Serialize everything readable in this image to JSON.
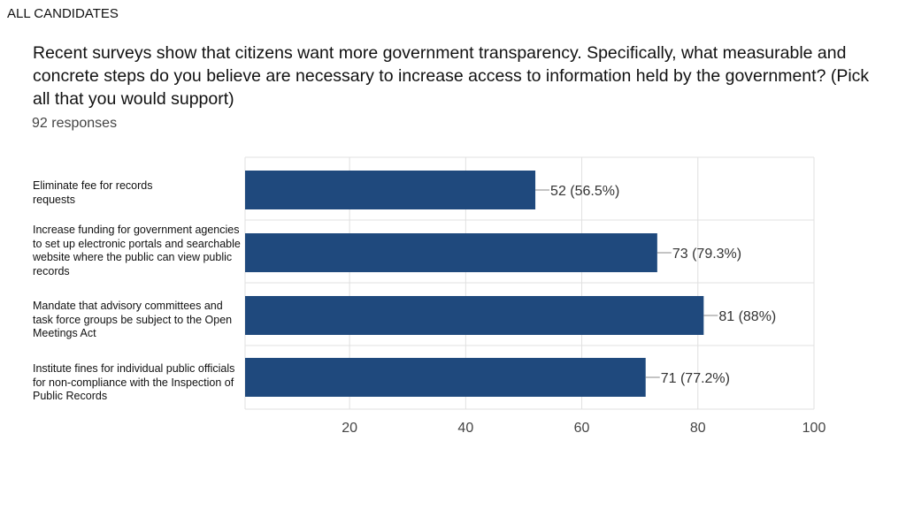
{
  "header": {
    "corner_label": "ALL CANDIDATES",
    "question": "Recent surveys show that citizens want more government transparency. Specifically, what measurable and concrete steps do you believe are necessary to increase access to information held by the government? (Pick all that you would support)",
    "responses": "92 responses"
  },
  "colors": {
    "bar": "#1f497d",
    "grid": "#e0e0e0",
    "leader": "#888888",
    "tick_text": "#444444"
  },
  "chart_data": {
    "type": "bar",
    "orientation": "horizontal",
    "categories": [
      "Eliminate fee for records requests",
      "Increase funding for government agencies to set up electronic portals and searchable website where the public can view public records",
      "Mandate that advisory committees and task force groups be subject to the Open Meetings Act",
      "Institute fines for individual public officials for non-compliance with the Inspection of Public Records"
    ],
    "values": [
      52,
      73,
      81,
      71
    ],
    "data_labels": [
      "52 (56.5%)",
      "73 (79.3%)",
      "81 (88%)",
      "71 (77.2%)"
    ],
    "x_ticks": [
      20,
      40,
      60,
      80,
      100
    ],
    "tick_labels": [
      "20",
      "40",
      "60",
      "80",
      100
    ],
    "xlim": [
      2,
      100
    ],
    "grid": true
  }
}
